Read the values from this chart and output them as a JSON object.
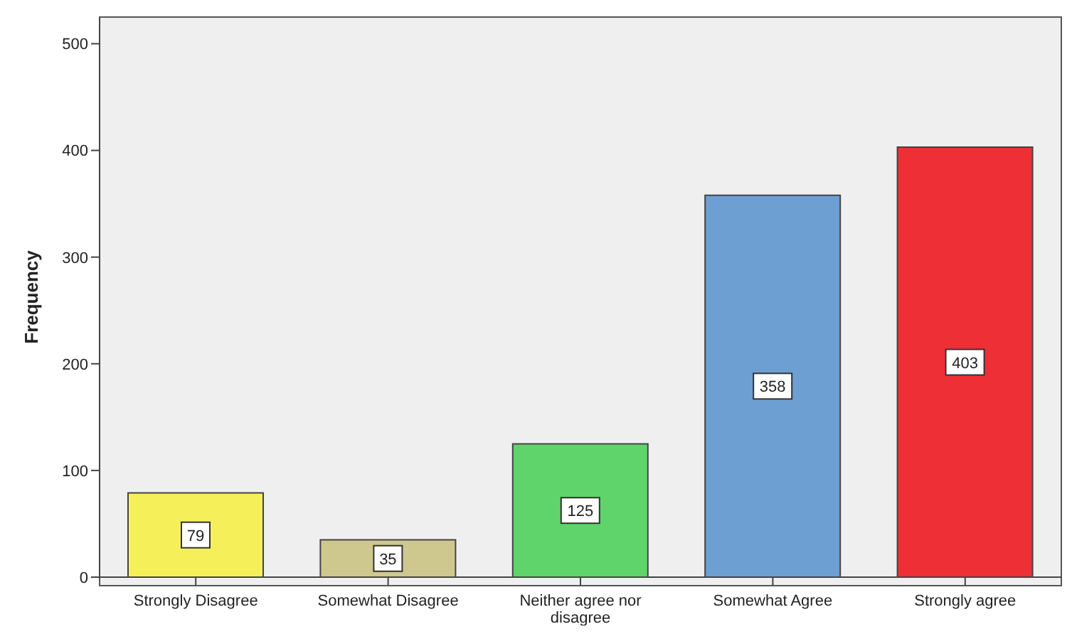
{
  "chart_data": {
    "type": "bar",
    "ylabel": "Frequency",
    "categories": [
      "Strongly Disagree",
      "Somewhat Disagree",
      "Neither agree nor disagree",
      "Somewhat Agree",
      "Strongly agree"
    ],
    "values": [
      79,
      35,
      125,
      358,
      403
    ],
    "colors": [
      "#f5f05a",
      "#cfc88e",
      "#5fd46a",
      "#6d9fd2",
      "#ee2f36"
    ],
    "ylim": [
      0,
      525
    ],
    "yticks": [
      0,
      100,
      200,
      300,
      400,
      500
    ],
    "data_labels": true
  }
}
